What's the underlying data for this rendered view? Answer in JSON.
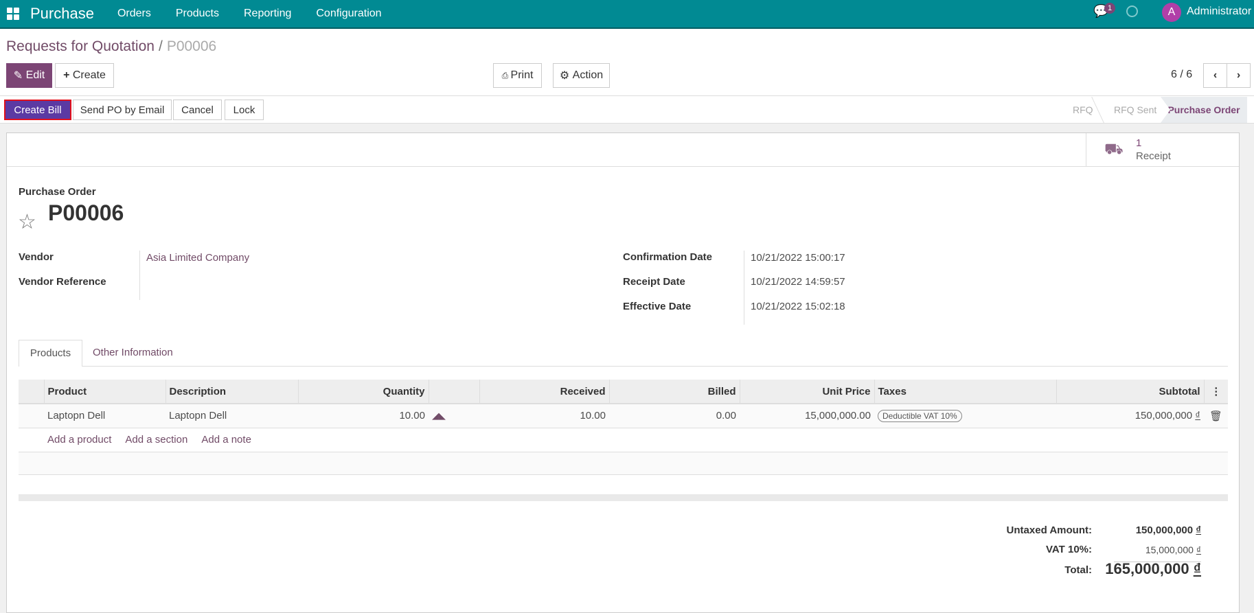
{
  "navbar": {
    "app": "Purchase",
    "menus": [
      "Orders",
      "Products",
      "Reporting",
      "Configuration"
    ],
    "messages_count": "1",
    "user_initial": "A",
    "user": "Administrator",
    "nav_color": "#018a93"
  },
  "breadcrumb": {
    "parent": "Requests for Quotation",
    "separator": "/",
    "current": "P00006"
  },
  "toolbar": {
    "edit": "Edit",
    "create": "Create",
    "print": "Print",
    "action": "Action",
    "pager": "6 / 6"
  },
  "statusbar": {
    "buttons": [
      "Create Bill",
      "Send PO by Email",
      "Cancel",
      "Lock"
    ],
    "stages": [
      "RFQ",
      "RFQ Sent",
      "Purchase Order"
    ],
    "current_stage": "Purchase Order"
  },
  "smart_button": {
    "count": "1",
    "label": "Receipt"
  },
  "form": {
    "type_label": "Purchase Order",
    "name": "P00006",
    "fields_left": [
      {
        "label": "Vendor",
        "value": "Asia Limited Company"
      },
      {
        "label": "Vendor Reference",
        "value": ""
      }
    ],
    "fields_right": [
      {
        "label": "Confirmation Date",
        "value": "10/21/2022 15:00:17"
      },
      {
        "label": "Receipt Date",
        "value": "10/21/2022 14:59:57"
      },
      {
        "label": "Effective Date",
        "value": "10/21/2022 15:02:18"
      }
    ]
  },
  "tabs": [
    "Products",
    "Other Information"
  ],
  "lines": {
    "headers": [
      "Product",
      "Description",
      "Quantity",
      "",
      "Received",
      "Billed",
      "Unit Price",
      "Taxes",
      "Subtotal"
    ],
    "rows": [
      {
        "product": "Laptopn Dell",
        "description": "Laptopn Dell",
        "quantity": "10.00",
        "received": "10.00",
        "billed": "0.00",
        "unit_price": "15,000,000.00",
        "tax": "Deductible VAT 10%",
        "subtotal": "150,000,000",
        "currency": "₫"
      }
    ],
    "add_product": "Add a product",
    "add_section": "Add a section",
    "add_note": "Add a note"
  },
  "totals": {
    "untaxed_label": "Untaxed Amount:",
    "untaxed": "150,000,000",
    "vat_label": "VAT 10%:",
    "vat": "15,000,000",
    "total_label": "Total:",
    "total": "165,000,000",
    "currency": "₫"
  }
}
